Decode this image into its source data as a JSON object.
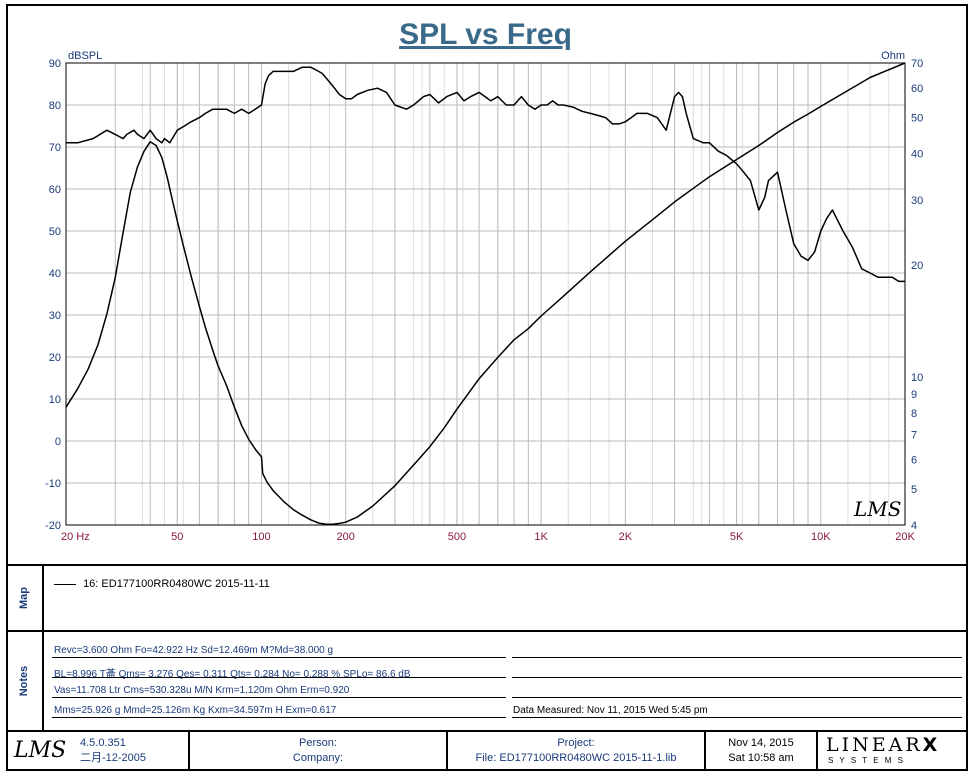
{
  "chart_data": {
    "type": "line",
    "title": "SPL vs Freq",
    "ylabel_left": "dBSPL",
    "ylabel_right": "Ohm",
    "x_scale": "log",
    "xlim": [
      20,
      20000
    ],
    "ylim_left": [
      -20,
      90
    ],
    "ylim_right": [
      4,
      70
    ],
    "y_right_scale": "log",
    "grid": true,
    "x_ticks": [
      {
        "value": 20,
        "label": "20  Hz"
      },
      {
        "value": 50,
        "label": "50"
      },
      {
        "value": 100,
        "label": "100"
      },
      {
        "value": 200,
        "label": "200"
      },
      {
        "value": 500,
        "label": "500"
      },
      {
        "value": 1000,
        "label": "1K"
      },
      {
        "value": 2000,
        "label": "2K"
      },
      {
        "value": 5000,
        "label": "5K"
      },
      {
        "value": 10000,
        "label": "10K"
      },
      {
        "value": 20000,
        "label": "20K"
      }
    ],
    "y_left_ticks": [
      90,
      80,
      70,
      60,
      50,
      40,
      30,
      20,
      10,
      0,
      -10,
      -20
    ],
    "y_right_ticks": [
      {
        "value": 70,
        "label": "70"
      },
      {
        "value": 60,
        "label": "60"
      },
      {
        "value": 50,
        "label": "50"
      },
      {
        "value": 40,
        "label": "40"
      },
      {
        "value": 30,
        "label": "30"
      },
      {
        "value": 20,
        "label": "20"
      },
      {
        "value": 10,
        "label": "10"
      },
      {
        "value": 9,
        "label": "9"
      },
      {
        "value": 8,
        "label": "8"
      },
      {
        "value": 7,
        "label": "7"
      },
      {
        "value": 6,
        "label": "6"
      },
      {
        "value": 5,
        "label": "5"
      },
      {
        "value": 4,
        "label": "4"
      }
    ],
    "watermark": "LMS",
    "series": [
      {
        "axis": "left",
        "x": [
          20,
          22,
          25,
          28,
          30,
          32,
          33,
          35,
          36,
          38,
          40,
          42,
          44,
          45,
          47,
          50,
          53,
          56,
          60,
          63,
          67,
          70,
          75,
          80,
          85,
          90,
          95,
          100,
          103,
          106,
          110,
          120,
          130,
          140,
          150,
          160,
          165,
          170,
          180,
          190,
          200,
          210,
          220,
          240,
          260,
          280,
          300,
          330,
          350,
          380,
          400,
          430,
          460,
          500,
          530,
          560,
          600,
          630,
          660,
          700,
          750,
          800,
          850,
          900,
          950,
          1000,
          1050,
          1100,
          1150,
          1200,
          1300,
          1400,
          1500,
          1600,
          1700,
          1800,
          1900,
          2000,
          2100,
          2200,
          2400,
          2600,
          2800,
          3000,
          3100,
          3200,
          3300,
          3500,
          3800,
          4000,
          4300,
          4600,
          5000,
          5300,
          5600,
          6000,
          6300,
          6500,
          7000,
          7500,
          8000,
          8500,
          9000,
          9500,
          10000,
          10500,
          11000,
          12000,
          13000,
          14000,
          15000,
          16000,
          17000,
          18000,
          19000,
          20000
        ],
        "y": [
          71,
          71,
          72,
          74,
          73,
          72,
          73,
          74,
          73,
          72,
          74,
          72,
          71,
          72,
          71,
          74,
          75,
          76,
          77,
          78,
          79,
          79,
          79,
          78,
          79,
          78,
          79,
          80,
          85,
          87,
          88,
          88,
          88,
          89,
          89,
          88,
          87.5,
          86.5,
          84.5,
          82.5,
          81.5,
          81.5,
          82.5,
          83.5,
          84,
          83,
          80,
          79,
          80,
          82,
          82.5,
          80.5,
          82,
          83,
          81,
          82,
          83,
          82,
          81,
          82,
          80,
          80,
          82,
          80,
          79,
          80,
          80,
          81,
          80,
          80,
          79.5,
          78.5,
          78,
          77.5,
          77,
          75.5,
          75.5,
          76,
          77,
          78,
          78,
          77,
          74,
          82,
          83,
          82,
          78,
          72,
          71,
          71,
          69,
          68,
          66,
          64,
          62,
          55,
          58,
          62,
          64,
          55,
          47,
          44,
          43,
          45,
          50,
          53,
          55,
          50,
          46,
          41,
          40,
          39,
          39,
          39,
          38,
          38
        ]
      },
      {
        "axis": "right",
        "x": [
          20,
          22,
          24,
          26,
          28,
          30,
          32,
          34,
          36,
          38,
          40,
          42,
          44,
          46,
          48,
          50,
          53,
          56,
          60,
          63,
          67,
          70,
          75,
          80,
          85,
          90,
          95,
          100,
          101,
          105,
          110,
          120,
          130,
          140,
          150,
          160,
          170,
          180,
          190,
          200,
          220,
          250,
          300,
          350,
          400,
          450,
          500,
          600,
          700,
          800,
          900,
          1000,
          1200,
          1500,
          2000,
          2500,
          3000,
          3500,
          4000,
          5000,
          6000,
          7000,
          8000,
          9000,
          10000,
          12000,
          15000,
          20000
        ],
        "y": [
          8.3,
          9.3,
          10.5,
          12.2,
          14.8,
          18.5,
          24.5,
          31.5,
          36.7,
          40.5,
          43,
          42,
          39,
          34.5,
          30,
          26.3,
          22,
          18.7,
          15.5,
          13.6,
          11.8,
          10.7,
          9.5,
          8.3,
          7.4,
          6.8,
          6.4,
          6.1,
          5.5,
          5.2,
          4.95,
          4.63,
          4.4,
          4.25,
          4.13,
          4.05,
          4.02,
          4.02,
          4.04,
          4.07,
          4.2,
          4.5,
          5.1,
          5.8,
          6.5,
          7.3,
          8.2,
          9.9,
          11.3,
          12.6,
          13.5,
          14.6,
          16.5,
          19.2,
          23.2,
          26.5,
          29.6,
          32.2,
          34.6,
          38.5,
          42,
          45.5,
          48.5,
          51,
          53.5,
          58,
          64,
          70
        ]
      }
    ]
  },
  "map": {
    "side_label": "Map",
    "entry": "16: ED177100RR0480WC   2015-11-11"
  },
  "notes": {
    "side_label": "Notes",
    "rows": [
      "Revc=3.600 Ohm  Fo=42.922 Hz  Sd=12.469m M?Md=38.000 g",
      "BL=8.996 T菕  Qms= 3.276  Qes= 0.311  Qts= 0.284  No= 0.288 %  SPLo= 86.6 dB",
      "Vas=11.708 Ltr  Cms=530.328u M/N  Krm=1.120m Ohm  Erm=0.920",
      "Mms=25.926 g  Mmd=25.126m Kg  Kxm=34.597m H  Exm=0.617"
    ],
    "measured": "Data Measured: Nov 11, 2015  Wed  5:45 pm"
  },
  "footer": {
    "logo": "LMS",
    "version": "4.5.0.351",
    "version_date": "二月-12-2005",
    "person": "Person:",
    "company": "Company:",
    "project": "Project:",
    "file": "File: ED177100RR0480WC  2015-11-1.lib",
    "date": "Nov 14, 2015",
    "time": "Sat 10:58 am",
    "brand": "LINEAR",
    "brand_x": "X",
    "brand_sub": "S Y S T E M S"
  },
  "colors": {
    "title": "#3a6a8a",
    "axis_labels": "#1a3a7a",
    "x_tick_labels": "#8a1a3a",
    "grid": "#bbbbbb",
    "trace": "#000000"
  }
}
